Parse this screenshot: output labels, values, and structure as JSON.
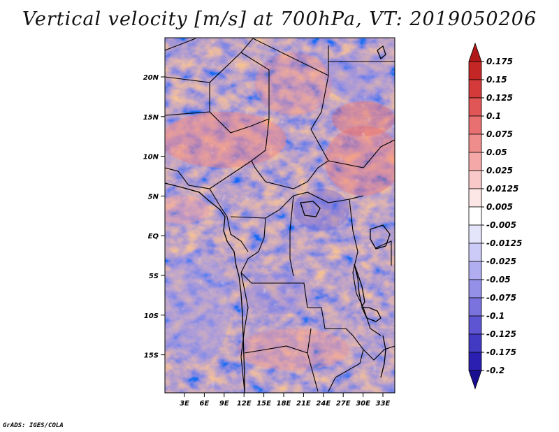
{
  "title": "Vertical velocity [m/s] at 700hPa, VT: 2019050206",
  "footer": "GrADS: IGES/COLA",
  "map": {
    "lat_labels": [
      "20N",
      "15N",
      "10N",
      "5N",
      "EQ",
      "5S",
      "10S",
      "15S"
    ],
    "lon_labels": [
      "3E",
      "6E",
      "9E",
      "12E",
      "15E",
      "18E",
      "21E",
      "24E",
      "27E",
      "30E",
      "33E"
    ]
  },
  "colorbar": {
    "labels": [
      "0.175",
      "0.15",
      "0.125",
      "0.1",
      "0.075",
      "0.05",
      "0.025",
      "0.0125",
      "0.005",
      "-0.005",
      "-0.0125",
      "-0.025",
      "-0.05",
      "-0.075",
      "-0.1",
      "-0.125",
      "-0.175",
      "-0.2"
    ],
    "colors": [
      "#b01818",
      "#c42525",
      "#d43a3a",
      "#e05555",
      "#e87070",
      "#ef8c8c",
      "#f5a8a8",
      "#f9c8c8",
      "#fde6e6",
      "#ffffff",
      "#e4e4fb",
      "#cccaf6",
      "#b0aef0",
      "#9490e8",
      "#7a72dd",
      "#5e55d2",
      "#433ac4",
      "#2a1fb0",
      "#1a0f90"
    ]
  }
}
